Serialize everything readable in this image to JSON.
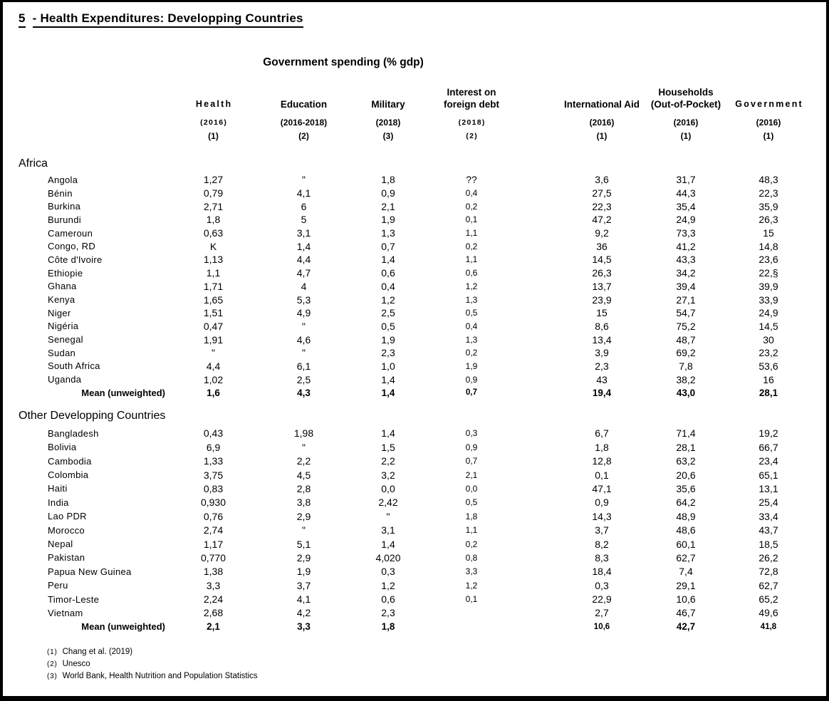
{
  "title": {
    "number": "5",
    "text": "- Health Expenditures: Developping Countries"
  },
  "subtitle": "Government spending (% gdp)",
  "columns": [
    {
      "label": "Health",
      "year": "(2016)",
      "src": "(1)",
      "name_style": "spaced",
      "year_style": "spaced",
      "src_style": "bold"
    },
    {
      "label": "Education",
      "year": "(2016-2018)",
      "src": "(2)",
      "name_style": "bold",
      "year_style": "bold",
      "src_style": "bold"
    },
    {
      "label": "Military",
      "year": "(2018)",
      "src": "(3)",
      "name_style": "bold",
      "year_style": "bold",
      "src_style": "bold"
    },
    {
      "label": "Interest on",
      "label2": "foreign debt",
      "year": "(2018)",
      "src": "(2)",
      "name_style": "bold",
      "year_style": "spaced",
      "src_style": "spaced"
    },
    {
      "label": "International Aid",
      "year": "(2016)",
      "src": "(1)",
      "name_style": "bold",
      "year_style": "bold",
      "src_style": "bold"
    },
    {
      "label": "Households",
      "label2": "(Out-of-Pocket)",
      "year": "(2016)",
      "src": "(1)",
      "name_style": "bold",
      "year_style": "bold",
      "src_style": "bold"
    },
    {
      "label": "Government",
      "year": "(2016)",
      "src": "(1)",
      "name_style": "spaced",
      "year_style": "bold",
      "src_style": "bold"
    }
  ],
  "sections": [
    {
      "name": "Africa",
      "rows": [
        {
          "country": "Angola",
          "values": [
            "1,27",
            "\"",
            "1,8",
            "??",
            "3,6",
            "31,7",
            "48,3"
          ]
        },
        {
          "country": "Bénin",
          "values": [
            "0,79",
            "4,1",
            "0,9",
            "0,4",
            "27,5",
            "44,3",
            "22,3"
          ]
        },
        {
          "country": "Burkina",
          "values": [
            "2,71",
            "6",
            "2,1",
            "0,2",
            "22,3",
            "35,4",
            "35,9"
          ]
        },
        {
          "country": "Burundi",
          "values": [
            "1,8",
            "5",
            "1,9",
            "0,1",
            "47,2",
            "24,9",
            "26,3"
          ]
        },
        {
          "country": "Cameroun",
          "values": [
            "0,63",
            "3,1",
            "1,3",
            "1,1",
            "9,2",
            "73,3",
            "15"
          ]
        },
        {
          "country": "Congo, RD",
          "values": [
            "K",
            "1,4",
            "0,7",
            "0,2",
            "36",
            "41,2",
            "14,8"
          ]
        },
        {
          "country": "Côte d'Ivoire",
          "values": [
            "1,13",
            "4,4",
            "1,4",
            "1,1",
            "14,5",
            "43,3",
            "23,6"
          ]
        },
        {
          "country": "Ethiopie",
          "values": [
            "1,1",
            "4,7",
            "0,6",
            "0,6",
            "26,3",
            "34,2",
            "22,§"
          ]
        },
        {
          "country": "Ghana",
          "values": [
            "1,71",
            "4",
            "0,4",
            "1,2",
            "13,7",
            "39,4",
            "39,9"
          ]
        },
        {
          "country": "Kenya",
          "values": [
            "1,65",
            "5,3",
            "1,2",
            "1,3",
            "23,9",
            "27,1",
            "33,9"
          ]
        },
        {
          "country": "Niger",
          "values": [
            "1,51",
            "4,9",
            "2,5",
            "0,5",
            "15",
            "54,7",
            "24,9"
          ]
        },
        {
          "country": "Nigéria",
          "values": [
            "0,47",
            "\"",
            "0,5",
            "0,4",
            "8,6",
            "75,2",
            "14,5"
          ]
        },
        {
          "country": "Senegal",
          "values": [
            "1,91",
            "4,6",
            "1,9",
            "1,3",
            "13,4",
            "48,7",
            "30"
          ]
        },
        {
          "country": "Sudan",
          "values": [
            "\"",
            "\"",
            "2,3",
            "0,2",
            "3,9",
            "69,2",
            "23,2"
          ]
        },
        {
          "country": "South Africa",
          "values": [
            "4,4",
            "6,1",
            "1,0",
            "1,9",
            "2,3",
            "7,8",
            "53,6"
          ]
        },
        {
          "country": "Uganda",
          "values": [
            "1,02",
            "2,5",
            "1,4",
            "0,9",
            "43",
            "38,2",
            "16"
          ]
        }
      ],
      "mean": {
        "label": "Mean (unweighted)",
        "values": [
          "1,6",
          "4,3",
          "1,4",
          "0,7",
          "19,4",
          "43,0",
          "28,1"
        ],
        "small_cells": [
          3
        ]
      }
    },
    {
      "name": "Other Developping Countries",
      "rows": [
        {
          "country": "Bangladesh",
          "values": [
            "0,43",
            "1,98",
            "1,4",
            "0,3",
            "6,7",
            "71,4",
            "19,2"
          ]
        },
        {
          "country": "Bolivia",
          "values": [
            "6,9",
            "\"",
            "1,5",
            "0,9",
            "1,8",
            "28,1",
            "66,7"
          ]
        },
        {
          "country": "Cambodia",
          "values": [
            "1,33",
            "2,2",
            "2,2",
            "0,7",
            "12,8",
            "63,2",
            "23,4"
          ]
        },
        {
          "country": "Colombia",
          "values": [
            "3,75",
            "4,5",
            "3,2",
            "2,1",
            "0,1",
            "20,6",
            "65,1"
          ]
        },
        {
          "country": "Haiti",
          "values": [
            "0,83",
            "2,8",
            "0,0",
            "0,0",
            "47,1",
            "35,6",
            "13,1"
          ]
        },
        {
          "country": "India",
          "values": [
            "0,930",
            "3,8",
            "2,42",
            "0,5",
            "0,9",
            "64,2",
            "25,4"
          ]
        },
        {
          "country": "Lao PDR",
          "values": [
            "0,76",
            "2,9",
            "\"",
            "1,8",
            "14,3",
            "48,9",
            "33,4"
          ]
        },
        {
          "country": "Morocco",
          "values": [
            "2,74",
            "\"",
            "3,1",
            "1,1",
            "3,7",
            "48,6",
            "43,7"
          ]
        },
        {
          "country": "Nepal",
          "values": [
            "1,17",
            "5,1",
            "1,4",
            "0,2",
            "8,2",
            "60,1",
            "18,5"
          ]
        },
        {
          "country": "Pakistan",
          "values": [
            "0,770",
            "2,9",
            "4,020",
            "0,8",
            "8,3",
            "62,7",
            "26,2"
          ]
        },
        {
          "country": "Papua New Guinea",
          "values": [
            "1,38",
            "1,9",
            "0,3",
            "3,3",
            "18,4",
            "7,4",
            "72,8"
          ]
        },
        {
          "country": "Peru",
          "values": [
            "3,3",
            "3,7",
            "1,2",
            "1,2",
            "0,3",
            "29,1",
            "62,7"
          ]
        },
        {
          "country": "Timor-Leste",
          "values": [
            "2,24",
            "4,1",
            "0,6",
            "0,1",
            "22,9",
            "10,6",
            "65,2"
          ]
        },
        {
          "country": "Vietnam",
          "values": [
            "2,68",
            "4,2",
            "2,3",
            "",
            "2,7",
            "46,7",
            "49,6"
          ]
        }
      ],
      "mean": {
        "label": "Mean (unweighted)",
        "values": [
          "2,1",
          "3,3",
          "1,8",
          "",
          "10,6",
          "42,7",
          "41,8"
        ],
        "small_cells": [
          3,
          4,
          6
        ]
      }
    }
  ],
  "footnotes": [
    {
      "num": "(1)",
      "text": "Chang et al. (2019)"
    },
    {
      "num": "(2)",
      "text": "Unesco"
    },
    {
      "num": "(3)",
      "text": "World Bank, Health Nutrition and Population Statistics"
    }
  ]
}
